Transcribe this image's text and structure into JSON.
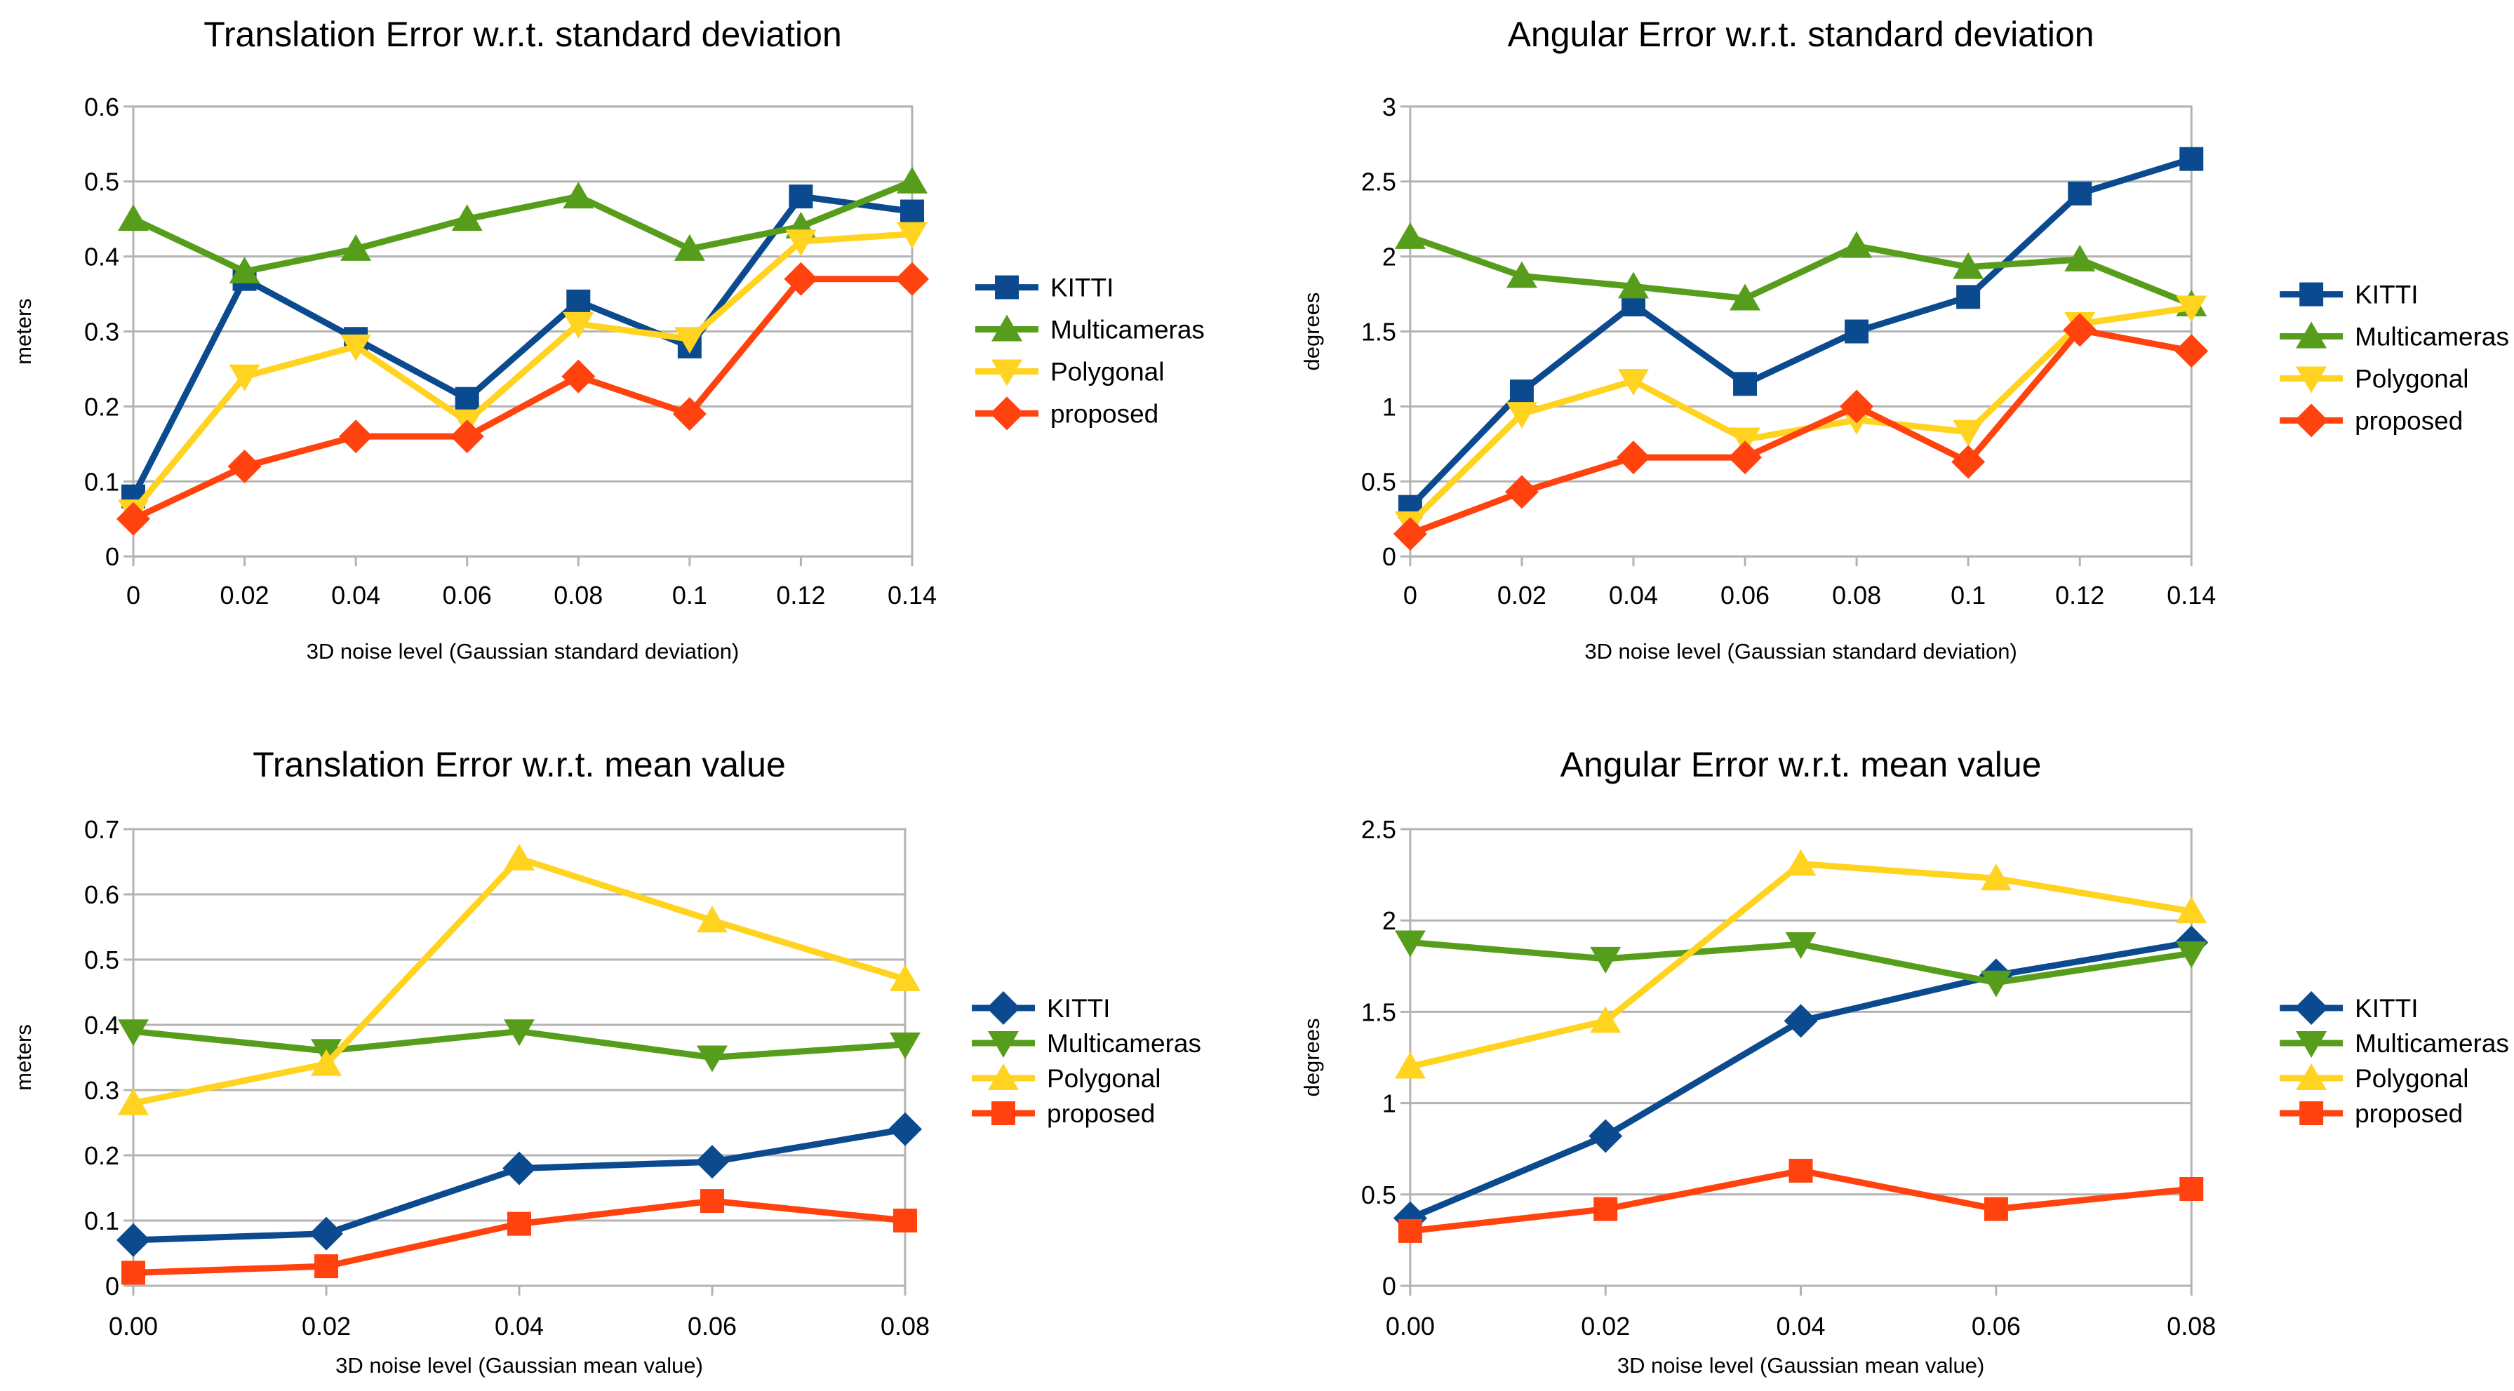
{
  "figure": {
    "background": "#ffffff",
    "text_color": "#000000",
    "grid_color": "#b3b3b3"
  },
  "colors": {
    "kitti": "#0b4a8e",
    "multicameras": "#579d1c",
    "polygonal": "#ffd320",
    "proposed": "#ff420e"
  },
  "legend_entries": [
    "KITTI",
    "Multicameras",
    "Polygonal",
    "proposed"
  ],
  "chart_data": [
    {
      "type": "line",
      "title": "Translation Error w.r.t. standard deviation",
      "xlabel": "3D noise level (Gaussian standard deviation)",
      "ylabel": "meters",
      "x": [
        0,
        0.02,
        0.04,
        0.06,
        0.08,
        0.1,
        0.12,
        0.14
      ],
      "x_tick_labels": [
        "0",
        "0.02",
        "0.04",
        "0.06",
        "0.08",
        "0.1",
        "0.12",
        "0.14"
      ],
      "ylim": [
        0,
        0.6
      ],
      "y_ticks": [
        0,
        0.1,
        0.2,
        0.3,
        0.4,
        0.5,
        0.6
      ],
      "y_tick_labels": [
        "0",
        "0.1",
        "0.2",
        "0.3",
        "0.4",
        "0.5",
        "0.6"
      ],
      "grid": "horizontal",
      "legend_position": "right",
      "series": [
        {
          "name": "KITTI",
          "color": "#0b4a8e",
          "marker": "square",
          "values": [
            0.08,
            0.37,
            0.29,
            0.21,
            0.34,
            0.28,
            0.48,
            0.46
          ]
        },
        {
          "name": "Multicameras",
          "color": "#579d1c",
          "marker": "triangle-up",
          "values": [
            0.45,
            0.38,
            0.41,
            0.45,
            0.48,
            0.41,
            0.44,
            0.5
          ]
        },
        {
          "name": "Polygonal",
          "color": "#ffd320",
          "marker": "triangle-down",
          "values": [
            0.06,
            0.24,
            0.28,
            0.18,
            0.31,
            0.29,
            0.42,
            0.43
          ]
        },
        {
          "name": "proposed",
          "color": "#ff420e",
          "marker": "diamond",
          "values": [
            0.05,
            0.12,
            0.16,
            0.16,
            0.24,
            0.19,
            0.37,
            0.37
          ]
        }
      ]
    },
    {
      "type": "line",
      "title": "Angular Error w.r.t. standard deviation",
      "xlabel": "3D noise level (Gaussian standard deviation)",
      "ylabel": "degrees",
      "x": [
        0,
        0.02,
        0.04,
        0.06,
        0.08,
        0.1,
        0.12,
        0.14
      ],
      "x_tick_labels": [
        "0",
        "0.02",
        "0.04",
        "0.06",
        "0.08",
        "0.1",
        "0.12",
        "0.14"
      ],
      "ylim": [
        0,
        3
      ],
      "y_ticks": [
        0,
        0.5,
        1,
        1.5,
        2,
        2.5,
        3
      ],
      "y_tick_labels": [
        "0",
        "0.5",
        "1",
        "1.5",
        "2",
        "2.5",
        "3"
      ],
      "grid": "horizontal",
      "legend_position": "right",
      "series": [
        {
          "name": "KITTI",
          "color": "#0b4a8e",
          "marker": "square",
          "values": [
            0.33,
            1.1,
            1.68,
            1.15,
            1.5,
            1.73,
            2.42,
            2.65
          ]
        },
        {
          "name": "Multicameras",
          "color": "#579d1c",
          "marker": "triangle-up",
          "values": [
            2.13,
            1.87,
            1.8,
            1.72,
            2.07,
            1.93,
            1.98,
            1.68
          ]
        },
        {
          "name": "Polygonal",
          "color": "#ffd320",
          "marker": "triangle-down",
          "values": [
            0.22,
            0.95,
            1.17,
            0.78,
            0.91,
            0.83,
            1.55,
            1.66
          ]
        },
        {
          "name": "proposed",
          "color": "#ff420e",
          "marker": "diamond",
          "values": [
            0.15,
            0.43,
            0.66,
            0.66,
            1.0,
            0.63,
            1.51,
            1.37
          ]
        }
      ]
    },
    {
      "type": "line",
      "title": "Translation Error w.r.t. mean value",
      "xlabel": "3D noise level (Gaussian mean value)",
      "ylabel": "meters",
      "x": [
        0,
        0.02,
        0.04,
        0.06,
        0.08
      ],
      "x_tick_labels": [
        "0.00",
        "0.02",
        "0.04",
        "0.06",
        "0.08"
      ],
      "ylim": [
        0,
        0.7
      ],
      "y_ticks": [
        0,
        0.1,
        0.2,
        0.3,
        0.4,
        0.5,
        0.6,
        0.7
      ],
      "y_tick_labels": [
        "0",
        "0.1",
        "0.2",
        "0.3",
        "0.4",
        "0.5",
        "0.6",
        "0.7"
      ],
      "grid": "horizontal",
      "legend_position": "right",
      "series": [
        {
          "name": "KITTI",
          "color": "#0b4a8e",
          "marker": "diamond",
          "values": [
            0.07,
            0.08,
            0.18,
            0.19,
            0.24
          ]
        },
        {
          "name": "Multicameras",
          "color": "#579d1c",
          "marker": "triangle-down",
          "values": [
            0.39,
            0.36,
            0.39,
            0.35,
            0.37
          ]
        },
        {
          "name": "Polygonal",
          "color": "#ffd320",
          "marker": "triangle-up",
          "values": [
            0.28,
            0.34,
            0.655,
            0.56,
            0.47
          ]
        },
        {
          "name": "proposed",
          "color": "#ff420e",
          "marker": "square",
          "values": [
            0.02,
            0.03,
            0.095,
            0.13,
            0.1
          ]
        }
      ]
    },
    {
      "type": "line",
      "title": "Angular Error w.r.t. mean value",
      "xlabel": "3D noise level (Gaussian mean value)",
      "ylabel": "degrees",
      "x": [
        0,
        0.02,
        0.04,
        0.06,
        0.08
      ],
      "x_tick_labels": [
        "0.00",
        "0.02",
        "0.04",
        "0.06",
        "0.08"
      ],
      "ylim": [
        0,
        2.5
      ],
      "y_ticks": [
        0,
        0.5,
        1,
        1.5,
        2,
        2.5
      ],
      "y_tick_labels": [
        "0",
        "0.5",
        "1",
        "1.5",
        "2",
        "2.5"
      ],
      "grid": "horizontal",
      "legend_position": "right",
      "series": [
        {
          "name": "KITTI",
          "color": "#0b4a8e",
          "marker": "diamond",
          "values": [
            0.37,
            0.82,
            1.45,
            1.7,
            1.88
          ]
        },
        {
          "name": "Multicameras",
          "color": "#579d1c",
          "marker": "triangle-down",
          "values": [
            1.88,
            1.79,
            1.87,
            1.66,
            1.82
          ]
        },
        {
          "name": "Polygonal",
          "color": "#ffd320",
          "marker": "triangle-up",
          "values": [
            1.2,
            1.45,
            2.31,
            2.23,
            2.05
          ]
        },
        {
          "name": "proposed",
          "color": "#ff420e",
          "marker": "square",
          "values": [
            0.3,
            0.42,
            0.63,
            0.42,
            0.53
          ]
        }
      ]
    }
  ]
}
